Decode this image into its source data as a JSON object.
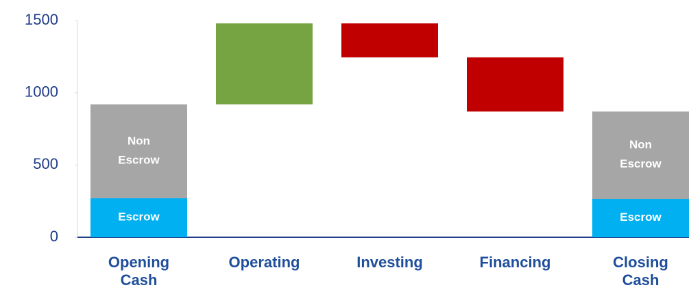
{
  "chart_data": {
    "type": "waterfall",
    "categories": [
      "Opening Cash",
      "Operating",
      "Investing",
      "Financing",
      "Closing Cash"
    ],
    "series": [
      {
        "name": "Escrow",
        "color": "#00b0f0",
        "values": [
          270,
          null,
          null,
          null,
          265
        ]
      },
      {
        "name": "Non Escrow",
        "color": "#a6a6a6",
        "values": [
          650,
          null,
          null,
          null,
          605
        ]
      }
    ],
    "changes": [
      null,
      560,
      -235,
      -375,
      null
    ],
    "increase_color": "#77a443",
    "decrease_color": "#c00000",
    "ylim": [
      0,
      1500
    ],
    "yticks": [
      0,
      500,
      1000,
      1500
    ],
    "grid": false
  }
}
